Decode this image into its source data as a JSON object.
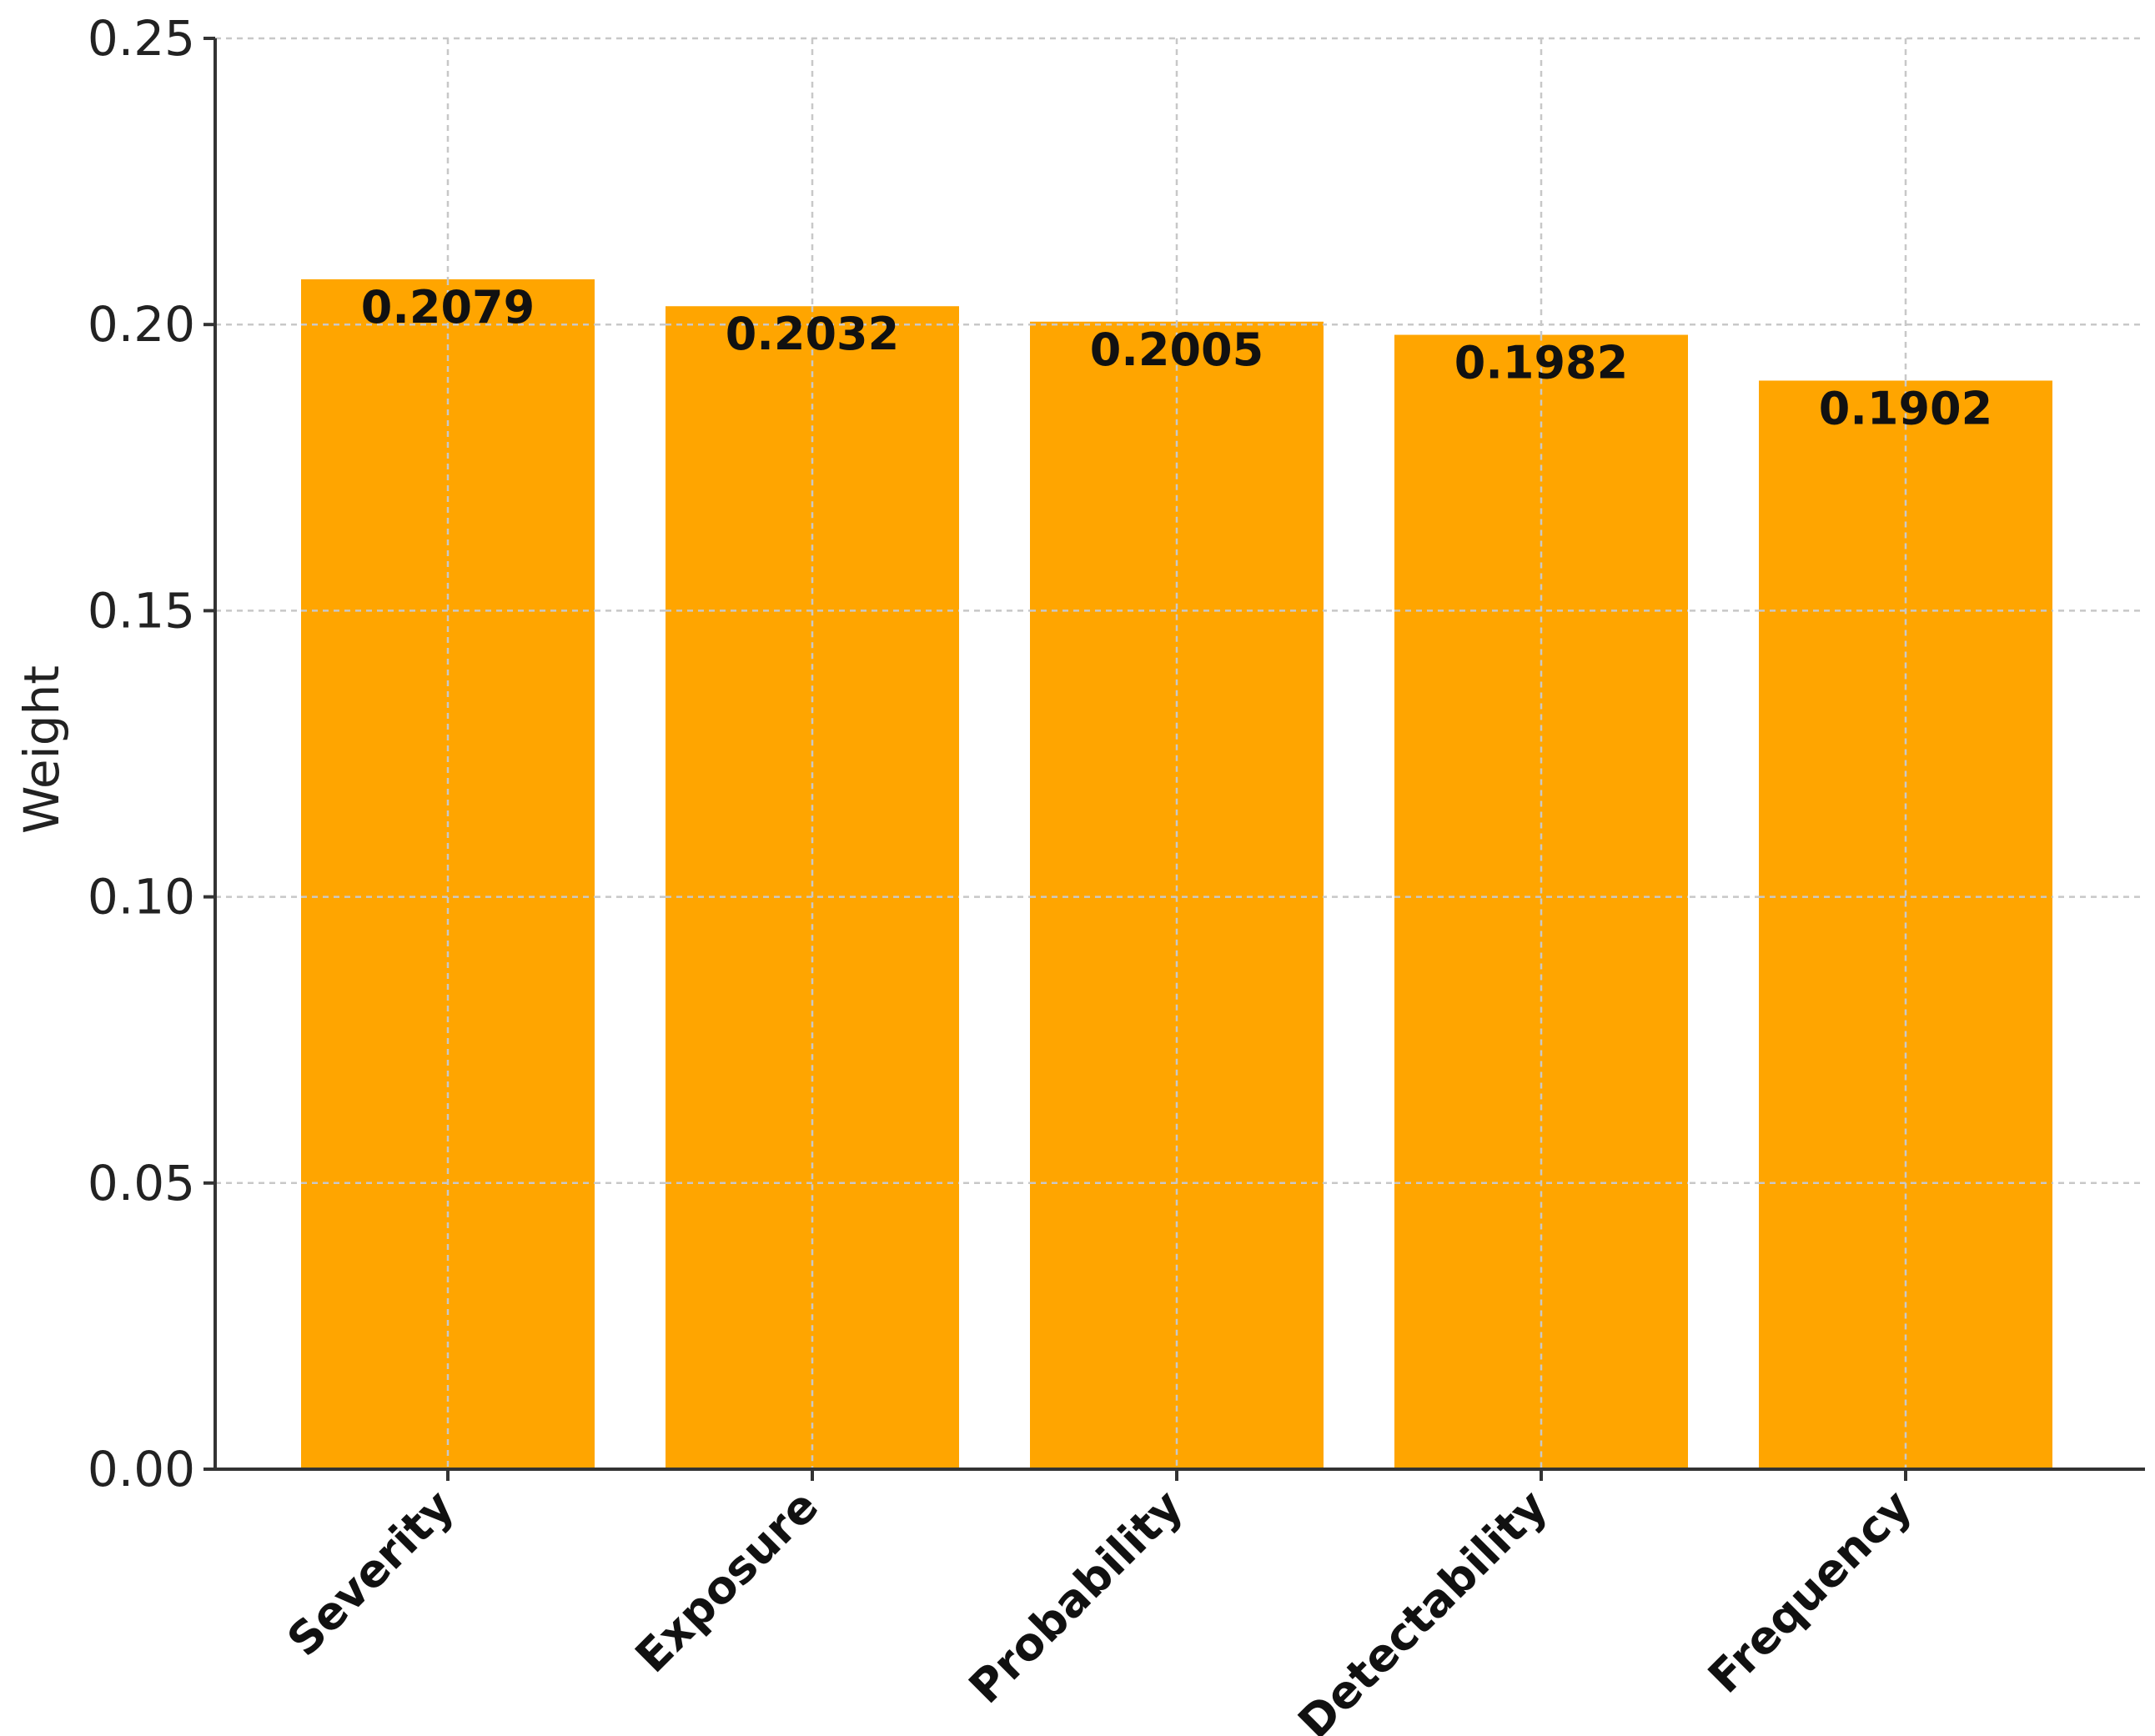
{
  "chart_data": {
    "type": "bar",
    "categories": [
      "Severity",
      "Exposure",
      "Probability",
      "Detectability",
      "Frequency"
    ],
    "values": [
      0.2079,
      0.2032,
      0.2005,
      0.1982,
      0.1902
    ],
    "data_labels": [
      "0.2079",
      "0.2032",
      "0.2005",
      "0.1982",
      "0.1902"
    ],
    "title": "",
    "xlabel": "",
    "ylabel": "Weight",
    "ylim": [
      0,
      0.25
    ],
    "yticks": [
      0.0,
      0.05,
      0.1,
      0.15,
      0.2,
      0.25
    ],
    "ytick_labels": [
      "0.00",
      "0.05",
      "0.10",
      "0.15",
      "0.20",
      "0.25"
    ],
    "grid": true,
    "legend": "none",
    "bar_color": "#ffa500"
  }
}
